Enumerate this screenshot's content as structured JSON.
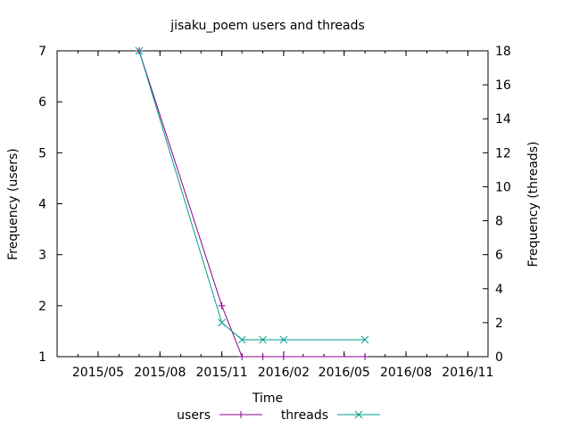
{
  "chart_data": {
    "type": "line",
    "title": "jisaku_poem users and threads",
    "xlabel": "Time",
    "ylabel_left": "Frequency (users)",
    "ylabel_right": "Frequency (threads)",
    "x_ticks": [
      "2015/05",
      "2015/08",
      "2015/11",
      "2016/02",
      "2016/05",
      "2016/08",
      "2016/11"
    ],
    "y_left_ticks": [
      "1",
      "2",
      "3",
      "4",
      "5",
      "6",
      "7"
    ],
    "y_right_ticks": [
      "0",
      "2",
      "4",
      "6",
      "8",
      "10",
      "12",
      "14",
      "16",
      "18"
    ],
    "y_left_range": [
      1,
      7
    ],
    "y_right_range": [
      0,
      18
    ],
    "x_range": [
      "2015-03-01",
      "2016-12-01"
    ],
    "legend_position": "bottom",
    "grid": false,
    "series": [
      {
        "name": "users",
        "axis": "left",
        "color": "#8b008b",
        "marker": "plus",
        "points": [
          {
            "x": "2015-07-01",
            "y": 7
          },
          {
            "x": "2015-11-01",
            "y": 2
          },
          {
            "x": "2015-12-01",
            "y": 1
          },
          {
            "x": "2016-01-01",
            "y": 1
          },
          {
            "x": "2016-02-01",
            "y": 1
          },
          {
            "x": "2016-06-01",
            "y": 1
          }
        ]
      },
      {
        "name": "threads",
        "axis": "right",
        "color": "#009e8a",
        "marker": "cross",
        "points": [
          {
            "x": "2015-07-01",
            "y": 18
          },
          {
            "x": "2015-11-01",
            "y": 2
          },
          {
            "x": "2015-12-01",
            "y": 1
          },
          {
            "x": "2016-01-01",
            "y": 1
          },
          {
            "x": "2016-02-01",
            "y": 1
          },
          {
            "x": "2016-06-01",
            "y": 1
          }
        ]
      }
    ]
  }
}
